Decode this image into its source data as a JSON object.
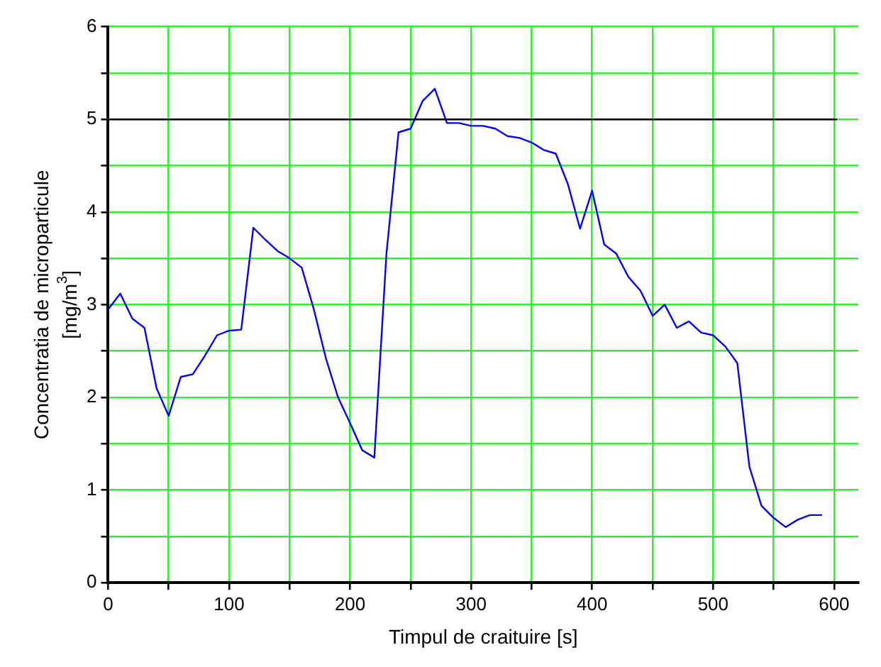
{
  "chart_data": {
    "type": "line",
    "xlabel": "Timpul de craituire [s]",
    "ylabel": "Concentratia de microparticule [mg/m$^{3}$]",
    "x": [
      0,
      10,
      20,
      30,
      40,
      50,
      60,
      70,
      80,
      90,
      100,
      110,
      120,
      130,
      140,
      150,
      160,
      170,
      180,
      190,
      200,
      210,
      220,
      230,
      240,
      250,
      260,
      270,
      280,
      290,
      300,
      310,
      320,
      330,
      340,
      350,
      360,
      370,
      380,
      390,
      400,
      410,
      420,
      430,
      440,
      450,
      460,
      470,
      480,
      490,
      500,
      510,
      520,
      530,
      540,
      550,
      560,
      570,
      580,
      590
    ],
    "series": [
      {
        "color": "#0000ff",
        "values": [
          2.95,
          3.12,
          2.85,
          2.75,
          2.1,
          1.8,
          2.22,
          2.25,
          2.45,
          2.67,
          2.72,
          2.73,
          3.83,
          3.7,
          3.58,
          3.5,
          3.4,
          2.95,
          2.42,
          2.0,
          1.72,
          1.43,
          1.35,
          3.55,
          4.86,
          4.9,
          5.2,
          5.33,
          4.96,
          4.96,
          4.93,
          4.93,
          4.9,
          4.82,
          4.8,
          4.75,
          4.67,
          4.63,
          4.3,
          3.82,
          4.23,
          3.65,
          3.55,
          3.3,
          3.15,
          2.88,
          3.0,
          2.75,
          2.82,
          2.7,
          2.67,
          2.55,
          2.37,
          1.25,
          0.83,
          0.7,
          0.6,
          0.68,
          0.73,
          0.73
        ]
      }
    ],
    "xlim": [
      0,
      620
    ],
    "ylim": [
      0,
      6
    ],
    "xticks": [
      0,
      {
        "value": 50,
        "label": null
      },
      100,
      {
        "value": 150,
        "label": null
      },
      200,
      {
        "value": 250,
        "label": null
      },
      300,
      {
        "value": 350,
        "label": null
      },
      400,
      {
        "value": 450,
        "label": null
      },
      500,
      {
        "value": 550,
        "label": null
      },
      600
    ],
    "yticks": [
      0,
      {
        "value": 0.5,
        "label": null
      },
      1,
      {
        "value": 1.5,
        "label": null
      },
      2,
      {
        "value": 2.5,
        "label": null
      },
      3,
      {
        "value": 3.5,
        "label": null
      },
      4,
      {
        "value": 4.5,
        "label": null
      },
      5,
      {
        "value": 5.5,
        "label": null
      },
      6
    ],
    "ref_lines": [
      {
        "axis": "y",
        "value": 5,
        "color": "#000000"
      }
    ],
    "grid": true,
    "legend": false,
    "marker": "none",
    "line_style": "solid"
  }
}
